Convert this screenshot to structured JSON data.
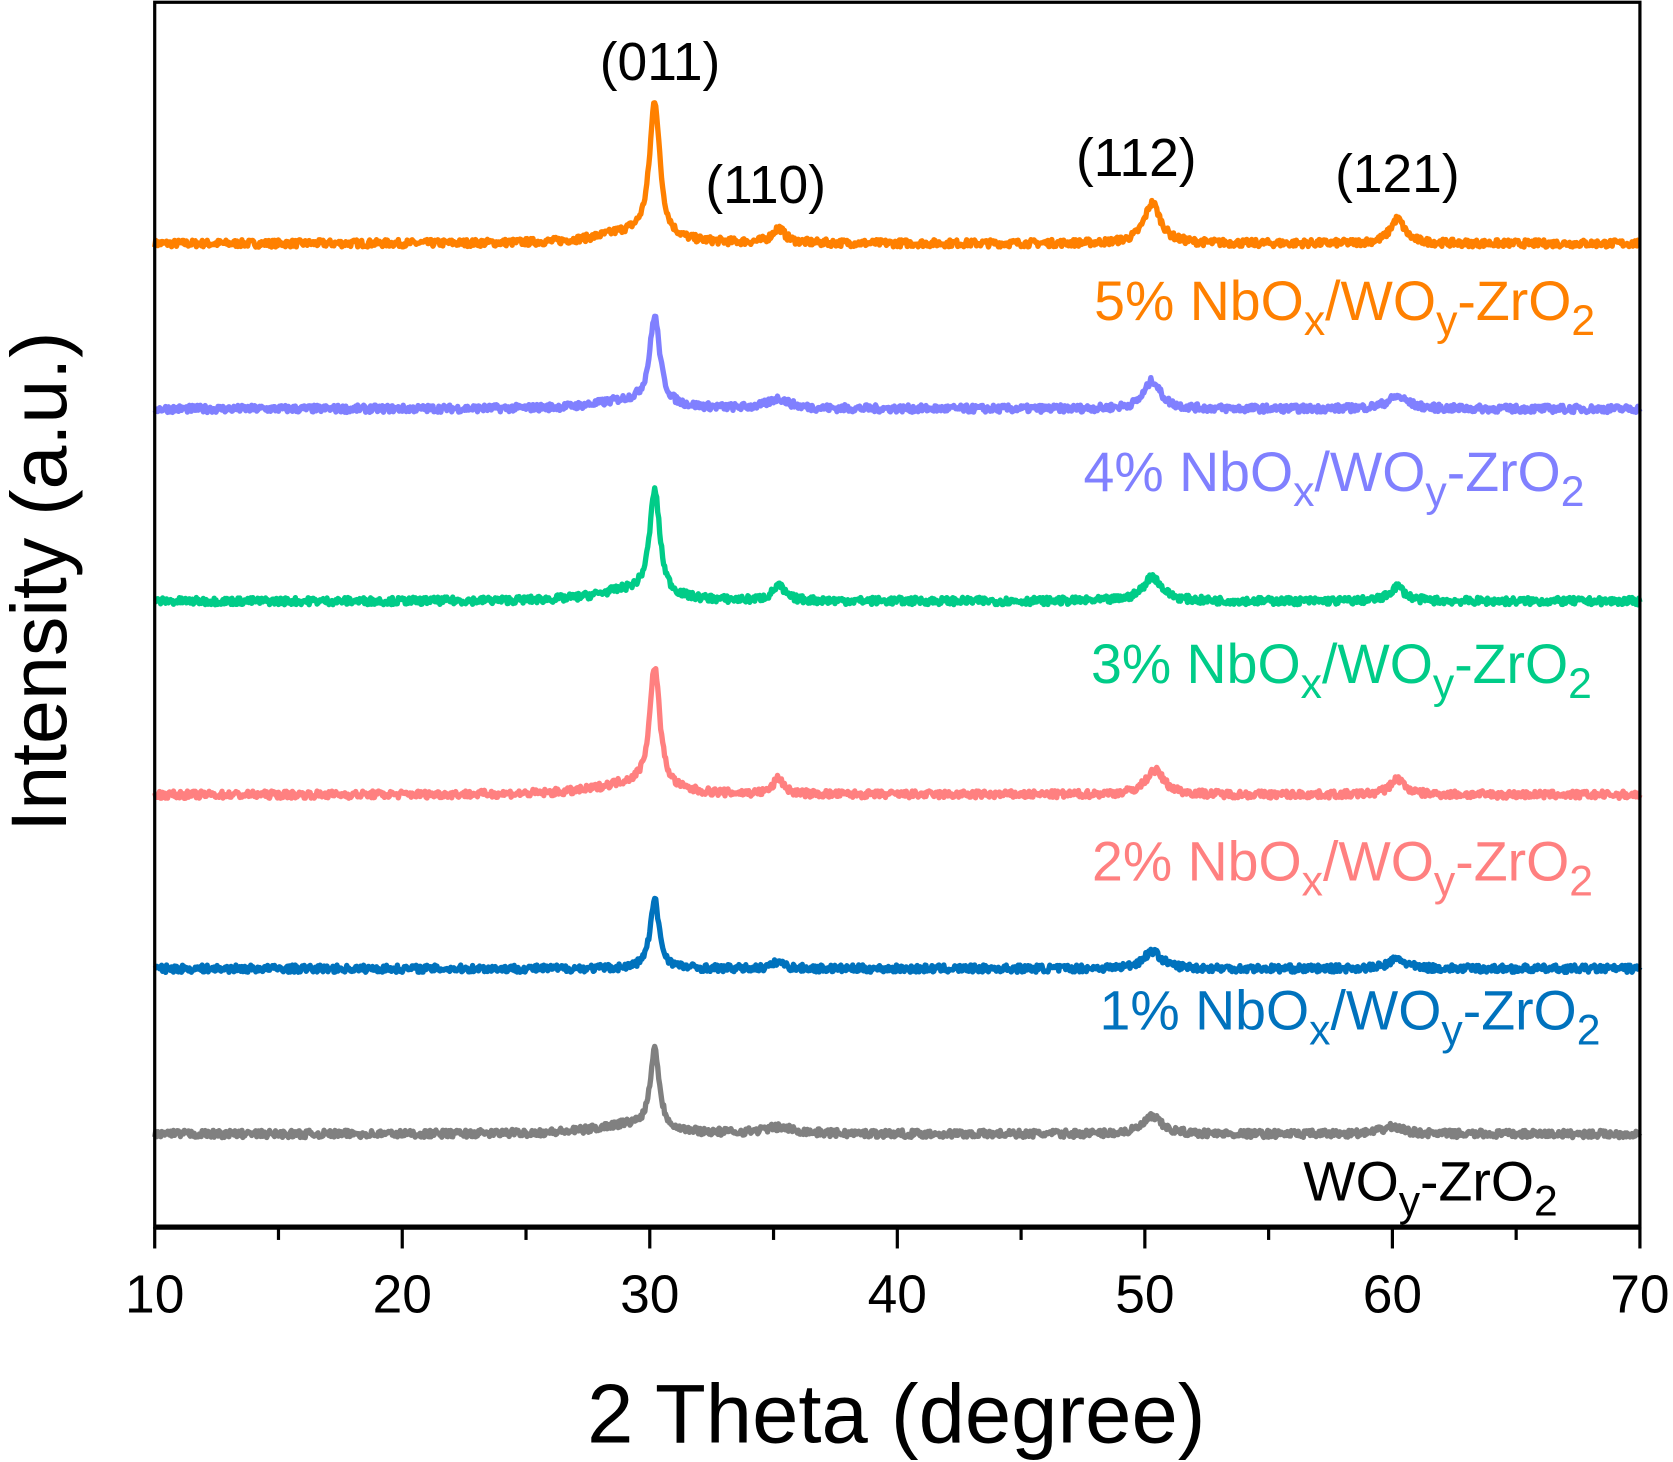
{
  "chart_data": {
    "type": "line",
    "title": "",
    "xlabel": "2 Theta (degree)",
    "ylabel": "Intensity (a.u.)",
    "xlim": [
      10,
      70
    ],
    "ylim": [
      0,
      100
    ],
    "x_ticks": [
      10,
      20,
      30,
      40,
      50,
      60,
      70
    ],
    "x_minor_tick_step": 5,
    "y_ticks": [],
    "grid": false,
    "stacked_offset": true,
    "peak_annotations": [
      {
        "label": "(011)",
        "two_theta": 30.2
      },
      {
        "label": "(110)",
        "two_theta": 35.2
      },
      {
        "label": "(112)",
        "two_theta": 50.3
      },
      {
        "label": "(121)",
        "two_theta": 60.2
      }
    ],
    "series": [
      {
        "name": "5% NbOx/WOy-ZrO2",
        "label_parts": [
          [
            "5% NbO",
            0
          ],
          [
            "x",
            1
          ],
          [
            "/WO",
            0
          ],
          [
            "y",
            1
          ],
          [
            "-ZrO",
            0
          ],
          [
            "2",
            1
          ]
        ],
        "color": "#FF8000",
        "baseline": 80.3,
        "peaks": [
          {
            "x": 30.2,
            "h": 11.2,
            "w": 0.25
          },
          {
            "x": 35.2,
            "h": 1.2,
            "w": 0.3
          },
          {
            "x": 50.3,
            "h": 3.3,
            "w": 0.4
          },
          {
            "x": 60.2,
            "h": 2.0,
            "w": 0.35
          },
          {
            "x": 29.0,
            "h": 0.8,
            "w": 1.5
          }
        ]
      },
      {
        "name": "4% NbOx/WOy-ZrO2",
        "label_parts": [
          [
            "4% NbO",
            0
          ],
          [
            "x",
            1
          ],
          [
            "/WO",
            0
          ],
          [
            "y",
            1
          ],
          [
            "-ZrO",
            0
          ],
          [
            "2",
            1
          ]
        ],
        "color": "#8080FF",
        "baseline": 66.8,
        "peaks": [
          {
            "x": 30.2,
            "h": 7.2,
            "w": 0.25
          },
          {
            "x": 35.2,
            "h": 0.8,
            "w": 0.5
          },
          {
            "x": 50.3,
            "h": 2.3,
            "w": 0.4
          },
          {
            "x": 60.2,
            "h": 1.0,
            "w": 0.5
          },
          {
            "x": 29.0,
            "h": 0.6,
            "w": 1.5
          }
        ]
      },
      {
        "name": "3% NbOx/WOy-ZrO2",
        "label_parts": [
          [
            "3% NbO",
            0
          ],
          [
            "x",
            1
          ],
          [
            "/WO",
            0
          ],
          [
            "y",
            1
          ],
          [
            "-ZrO",
            0
          ],
          [
            "2",
            1
          ]
        ],
        "color": "#00CC88",
        "baseline": 51.1,
        "peaks": [
          {
            "x": 30.2,
            "h": 8.6,
            "w": 0.25
          },
          {
            "x": 35.2,
            "h": 1.2,
            "w": 0.3
          },
          {
            "x": 50.3,
            "h": 2.0,
            "w": 0.45
          },
          {
            "x": 60.2,
            "h": 1.2,
            "w": 0.35
          },
          {
            "x": 29.0,
            "h": 0.8,
            "w": 1.5
          }
        ]
      },
      {
        "name": "2% NbOx/WOy-ZrO2",
        "label_parts": [
          [
            "2% NbO",
            0
          ],
          [
            "x",
            1
          ],
          [
            "/WO",
            0
          ],
          [
            "y",
            1
          ],
          [
            "-ZrO",
            0
          ],
          [
            "2",
            1
          ]
        ],
        "color": "#FF8080",
        "baseline": 35.3,
        "peaks": [
          {
            "x": 30.2,
            "h": 10.0,
            "w": 0.25
          },
          {
            "x": 35.2,
            "h": 1.3,
            "w": 0.25
          },
          {
            "x": 50.4,
            "h": 2.0,
            "w": 0.45
          },
          {
            "x": 60.2,
            "h": 1.3,
            "w": 0.35
          },
          {
            "x": 29.0,
            "h": 0.8,
            "w": 1.5
          }
        ]
      },
      {
        "name": "1% NbOx/WOy-ZrO2",
        "label_parts": [
          [
            "1% NbO",
            0
          ],
          [
            "x",
            1
          ],
          [
            "/WO",
            0
          ],
          [
            "y",
            1
          ],
          [
            "-ZrO",
            0
          ],
          [
            "2",
            1
          ]
        ],
        "color": "#0072BD",
        "baseline": 21.1,
        "peaks": [
          {
            "x": 30.2,
            "h": 5.6,
            "w": 0.22
          },
          {
            "x": 35.2,
            "h": 0.6,
            "w": 0.25
          },
          {
            "x": 50.3,
            "h": 1.4,
            "w": 0.45
          },
          {
            "x": 60.2,
            "h": 0.8,
            "w": 0.4
          }
        ]
      },
      {
        "name": "WOy-ZrO2",
        "label_parts": [
          [
            "WO",
            0
          ],
          [
            "y",
            1
          ],
          [
            "-ZrO",
            0
          ],
          [
            "2",
            1
          ]
        ],
        "color": "#808080",
        "baseline": 7.6,
        "peaks": [
          {
            "x": 30.2,
            "h": 6.6,
            "w": 0.22
          },
          {
            "x": 35.2,
            "h": 0.5,
            "w": 0.8
          },
          {
            "x": 50.3,
            "h": 1.4,
            "w": 0.45
          },
          {
            "x": 60.0,
            "h": 0.6,
            "w": 0.5
          },
          {
            "x": 29.0,
            "h": 0.7,
            "w": 1.5
          }
        ]
      }
    ]
  }
}
